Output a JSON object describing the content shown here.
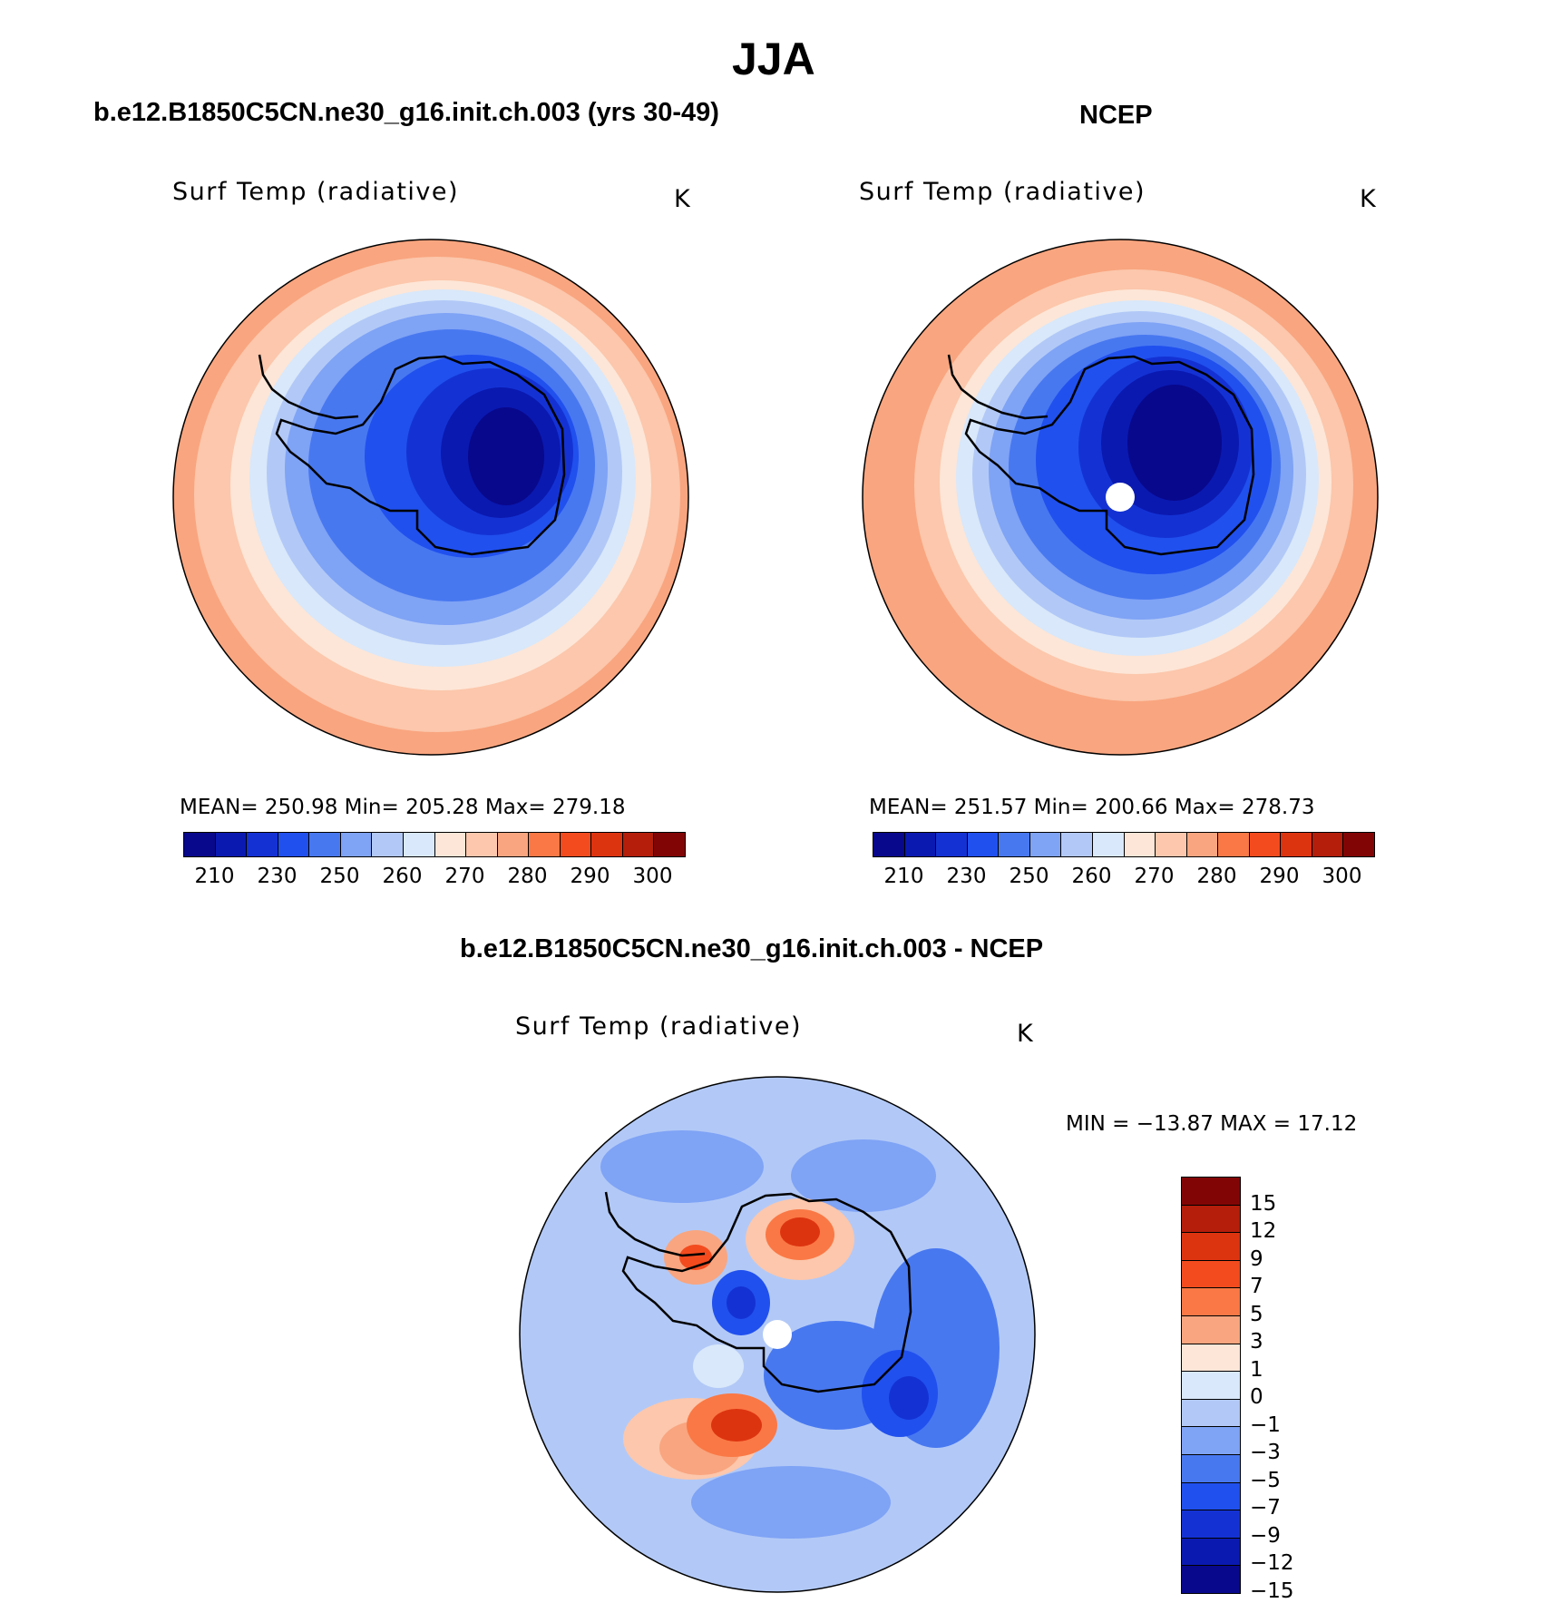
{
  "main_title": "JJA",
  "panel_left": {
    "case_title": "b.e12.B1850C5CN.ne30_g16.init.ch.003 (yrs 30-49)",
    "plot_label": "Surf Temp (radiative)",
    "units": "K",
    "stats": "MEAN= 250.98   Min= 205.28   Max= 279.18"
  },
  "panel_right": {
    "case_title": "NCEP",
    "plot_label": "Surf Temp (radiative)",
    "units": "K",
    "stats": "MEAN= 251.57   Min= 200.66   Max= 278.73"
  },
  "panel_diff": {
    "case_title": "b.e12.B1850C5CN.ne30_g16.init.ch.003 - NCEP",
    "plot_label": "Surf Temp (radiative)",
    "units": "K",
    "stats": "MIN = −13.87 MAX =   17.12"
  },
  "abs_colorbar": {
    "colors": [
      "#08088c",
      "#0a19b0",
      "#1432d4",
      "#2050ee",
      "#4878f0",
      "#7fa3f5",
      "#b2c9f7",
      "#d9e8fa",
      "#fde6d7",
      "#fcc7ac",
      "#f9a57f",
      "#fa7845",
      "#f34b1e",
      "#dd3410",
      "#b41e0a",
      "#820505"
    ],
    "labels": [
      "210",
      "230",
      "250",
      "260",
      "270",
      "280",
      "290",
      "300"
    ]
  },
  "diff_colorbar": {
    "colors": [
      "#820505",
      "#b41e0a",
      "#dd3410",
      "#f34b1e",
      "#fa7845",
      "#f9a57f",
      "#fde6d7",
      "#d9e8fa",
      "#b2c9f7",
      "#7fa3f5",
      "#4878f0",
      "#2050ee",
      "#1432d4",
      "#0a19b0",
      "#08088c"
    ],
    "labels": [
      "15",
      "12",
      "9",
      "7",
      "5",
      "3",
      "1",
      "0",
      "−1",
      "−3",
      "−5",
      "−7",
      "−9",
      "−12",
      "−15"
    ]
  }
}
